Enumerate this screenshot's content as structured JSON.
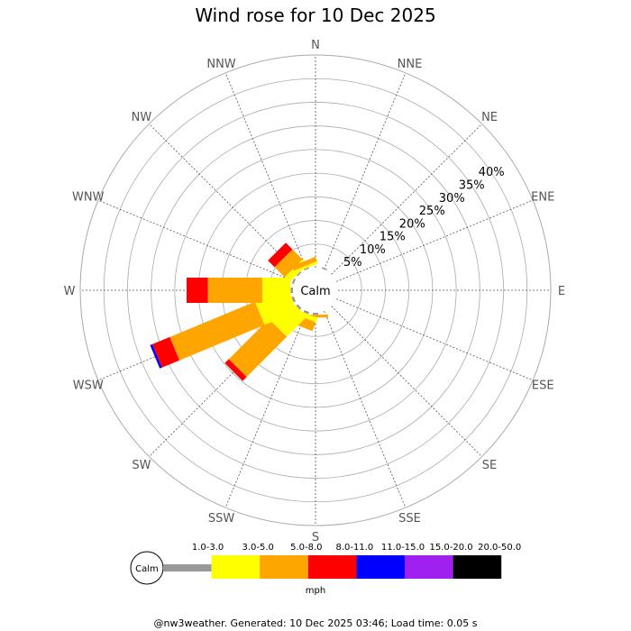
{
  "chart_data": {
    "type": "wind-rose",
    "title": "Wind rose for 10 Dec 2025",
    "directions": [
      "N",
      "NNE",
      "NE",
      "ENE",
      "E",
      "ESE",
      "SE",
      "SSE",
      "S",
      "SSW",
      "SW",
      "WSW",
      "W",
      "WNW",
      "NW",
      "NNW"
    ],
    "radial_ticks": [
      "5%",
      "10%",
      "15%",
      "20%",
      "25%",
      "30%",
      "35%",
      "40%"
    ],
    "radial_max": 45,
    "center_label": "Calm",
    "unit_label": "mph",
    "speed_bins": [
      {
        "label": "1.0-3.0",
        "color": "#999999"
      },
      {
        "label": "3.0-5.0",
        "color": "#ffff00"
      },
      {
        "label": "5.0-8.0",
        "color": "#ffa500"
      },
      {
        "label": "8.0-11.0",
        "color": "#ff0000"
      },
      {
        "label": "11.0-15.0",
        "color": "#0000ff"
      },
      {
        "label": "15.0-20.0",
        "color": "#a020f0"
      },
      {
        "label": "20.0-50.0",
        "color": "#000000"
      }
    ],
    "series": [
      {
        "direction": "NNE",
        "segments": [
          0.3
        ]
      },
      {
        "direction": "S",
        "segments": [
          0.4,
          0,
          0.6
        ]
      },
      {
        "direction": "SSW",
        "segments": [
          0.5,
          1.0,
          2.0
        ]
      },
      {
        "direction": "SW",
        "segments": [
          0.5,
          6.0,
          12.0,
          1.2
        ]
      },
      {
        "direction": "WSW",
        "segments": [
          0.5,
          7.5,
          19.5,
          4.0,
          0.5
        ]
      },
      {
        "direction": "W",
        "segments": [
          0.5,
          6.0,
          11.5,
          4.5
        ]
      },
      {
        "direction": "WNW",
        "segments": [
          0.4
        ]
      },
      {
        "direction": "NW",
        "segments": [
          0.3,
          1.5,
          3.0,
          2.0
        ]
      },
      {
        "direction": "NNW",
        "segments": [
          0.3,
          0.5,
          1.0
        ]
      }
    ]
  },
  "footer": "@nw3weather. Generated: 10 Dec 2025 03:46; Load time: 0.05 s"
}
